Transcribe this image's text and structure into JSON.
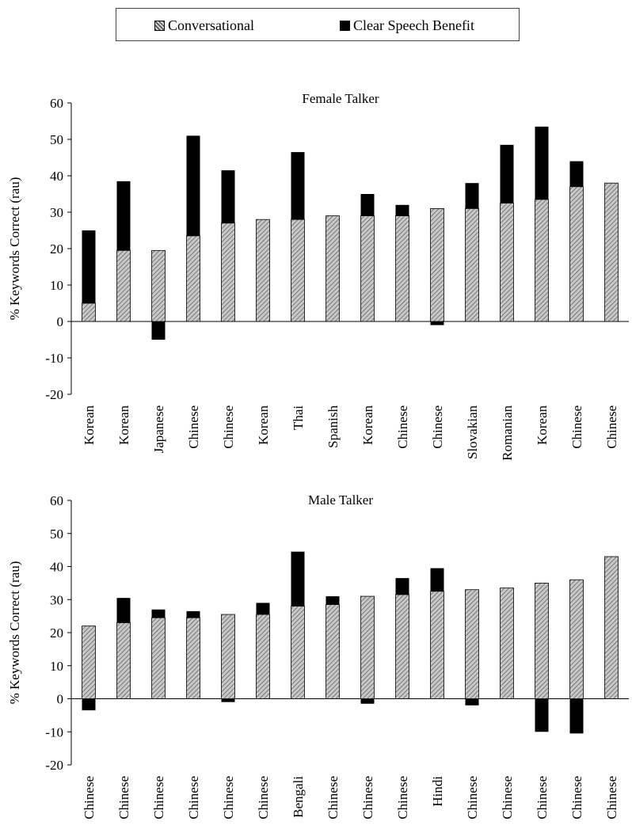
{
  "legend": {
    "conversational_label": "Conversational",
    "clear_label": "Clear Speech Benefit"
  },
  "colors": {
    "conversational_fill": "#c8c8c8",
    "hatch": "#555555",
    "clear_fill": "#000000"
  },
  "chart_data": [
    {
      "type": "bar",
      "stacked": true,
      "title": "Female Talker",
      "ylabel": "% Keywords Correct (rau)",
      "ylim": [
        -20,
        60
      ],
      "yticks": [
        -20,
        -10,
        0,
        10,
        20,
        30,
        40,
        50,
        60
      ],
      "grid": false,
      "categories": [
        "Korean",
        "Korean",
        "Japanese",
        "Chinese",
        "Chinese",
        "Korean",
        "Thai",
        "Spanish",
        "Korean",
        "Chinese",
        "Chinese",
        "Slovakian",
        "Romanian",
        "Korean",
        "Chinese",
        "Chinese"
      ],
      "series": [
        {
          "name": "Conversational",
          "values": [
            5,
            19.5,
            19.5,
            23.5,
            27,
            28,
            28,
            29,
            29,
            29,
            31,
            31,
            32.5,
            33.5,
            37,
            38
          ]
        },
        {
          "name": "Clear Speech Benefit",
          "values": [
            20,
            19,
            -5,
            27.5,
            14.5,
            0,
            18.5,
            0,
            6,
            3,
            -1,
            7,
            16,
            20,
            7,
            0
          ]
        }
      ]
    },
    {
      "type": "bar",
      "stacked": true,
      "title": "Male Talker",
      "ylabel": "% Keywords Correct (rau)",
      "ylim": [
        -20,
        60
      ],
      "yticks": [
        -20,
        -10,
        0,
        10,
        20,
        30,
        40,
        50,
        60
      ],
      "grid": false,
      "categories": [
        "Chinese",
        "Chinese",
        "Chinese",
        "Chinese",
        "Chinese",
        "Chinese",
        "Bengali",
        "Chinese",
        "Chinese",
        "Chinese",
        "Hindi",
        "Chinese",
        "Chinese",
        "Chinese",
        "Chinese",
        "Chinese"
      ],
      "series": [
        {
          "name": "Conversational",
          "values": [
            22,
            23,
            24.5,
            24.5,
            25.5,
            25.5,
            28,
            28.5,
            31,
            31.5,
            32.5,
            33,
            33.5,
            35,
            36,
            43
          ]
        },
        {
          "name": "Clear Speech Benefit",
          "values": [
            -3.5,
            7.5,
            2.5,
            2,
            -1,
            3.5,
            16.5,
            2.5,
            -1.5,
            5,
            7,
            -2,
            0,
            -10,
            -10.5,
            0
          ]
        }
      ]
    }
  ]
}
